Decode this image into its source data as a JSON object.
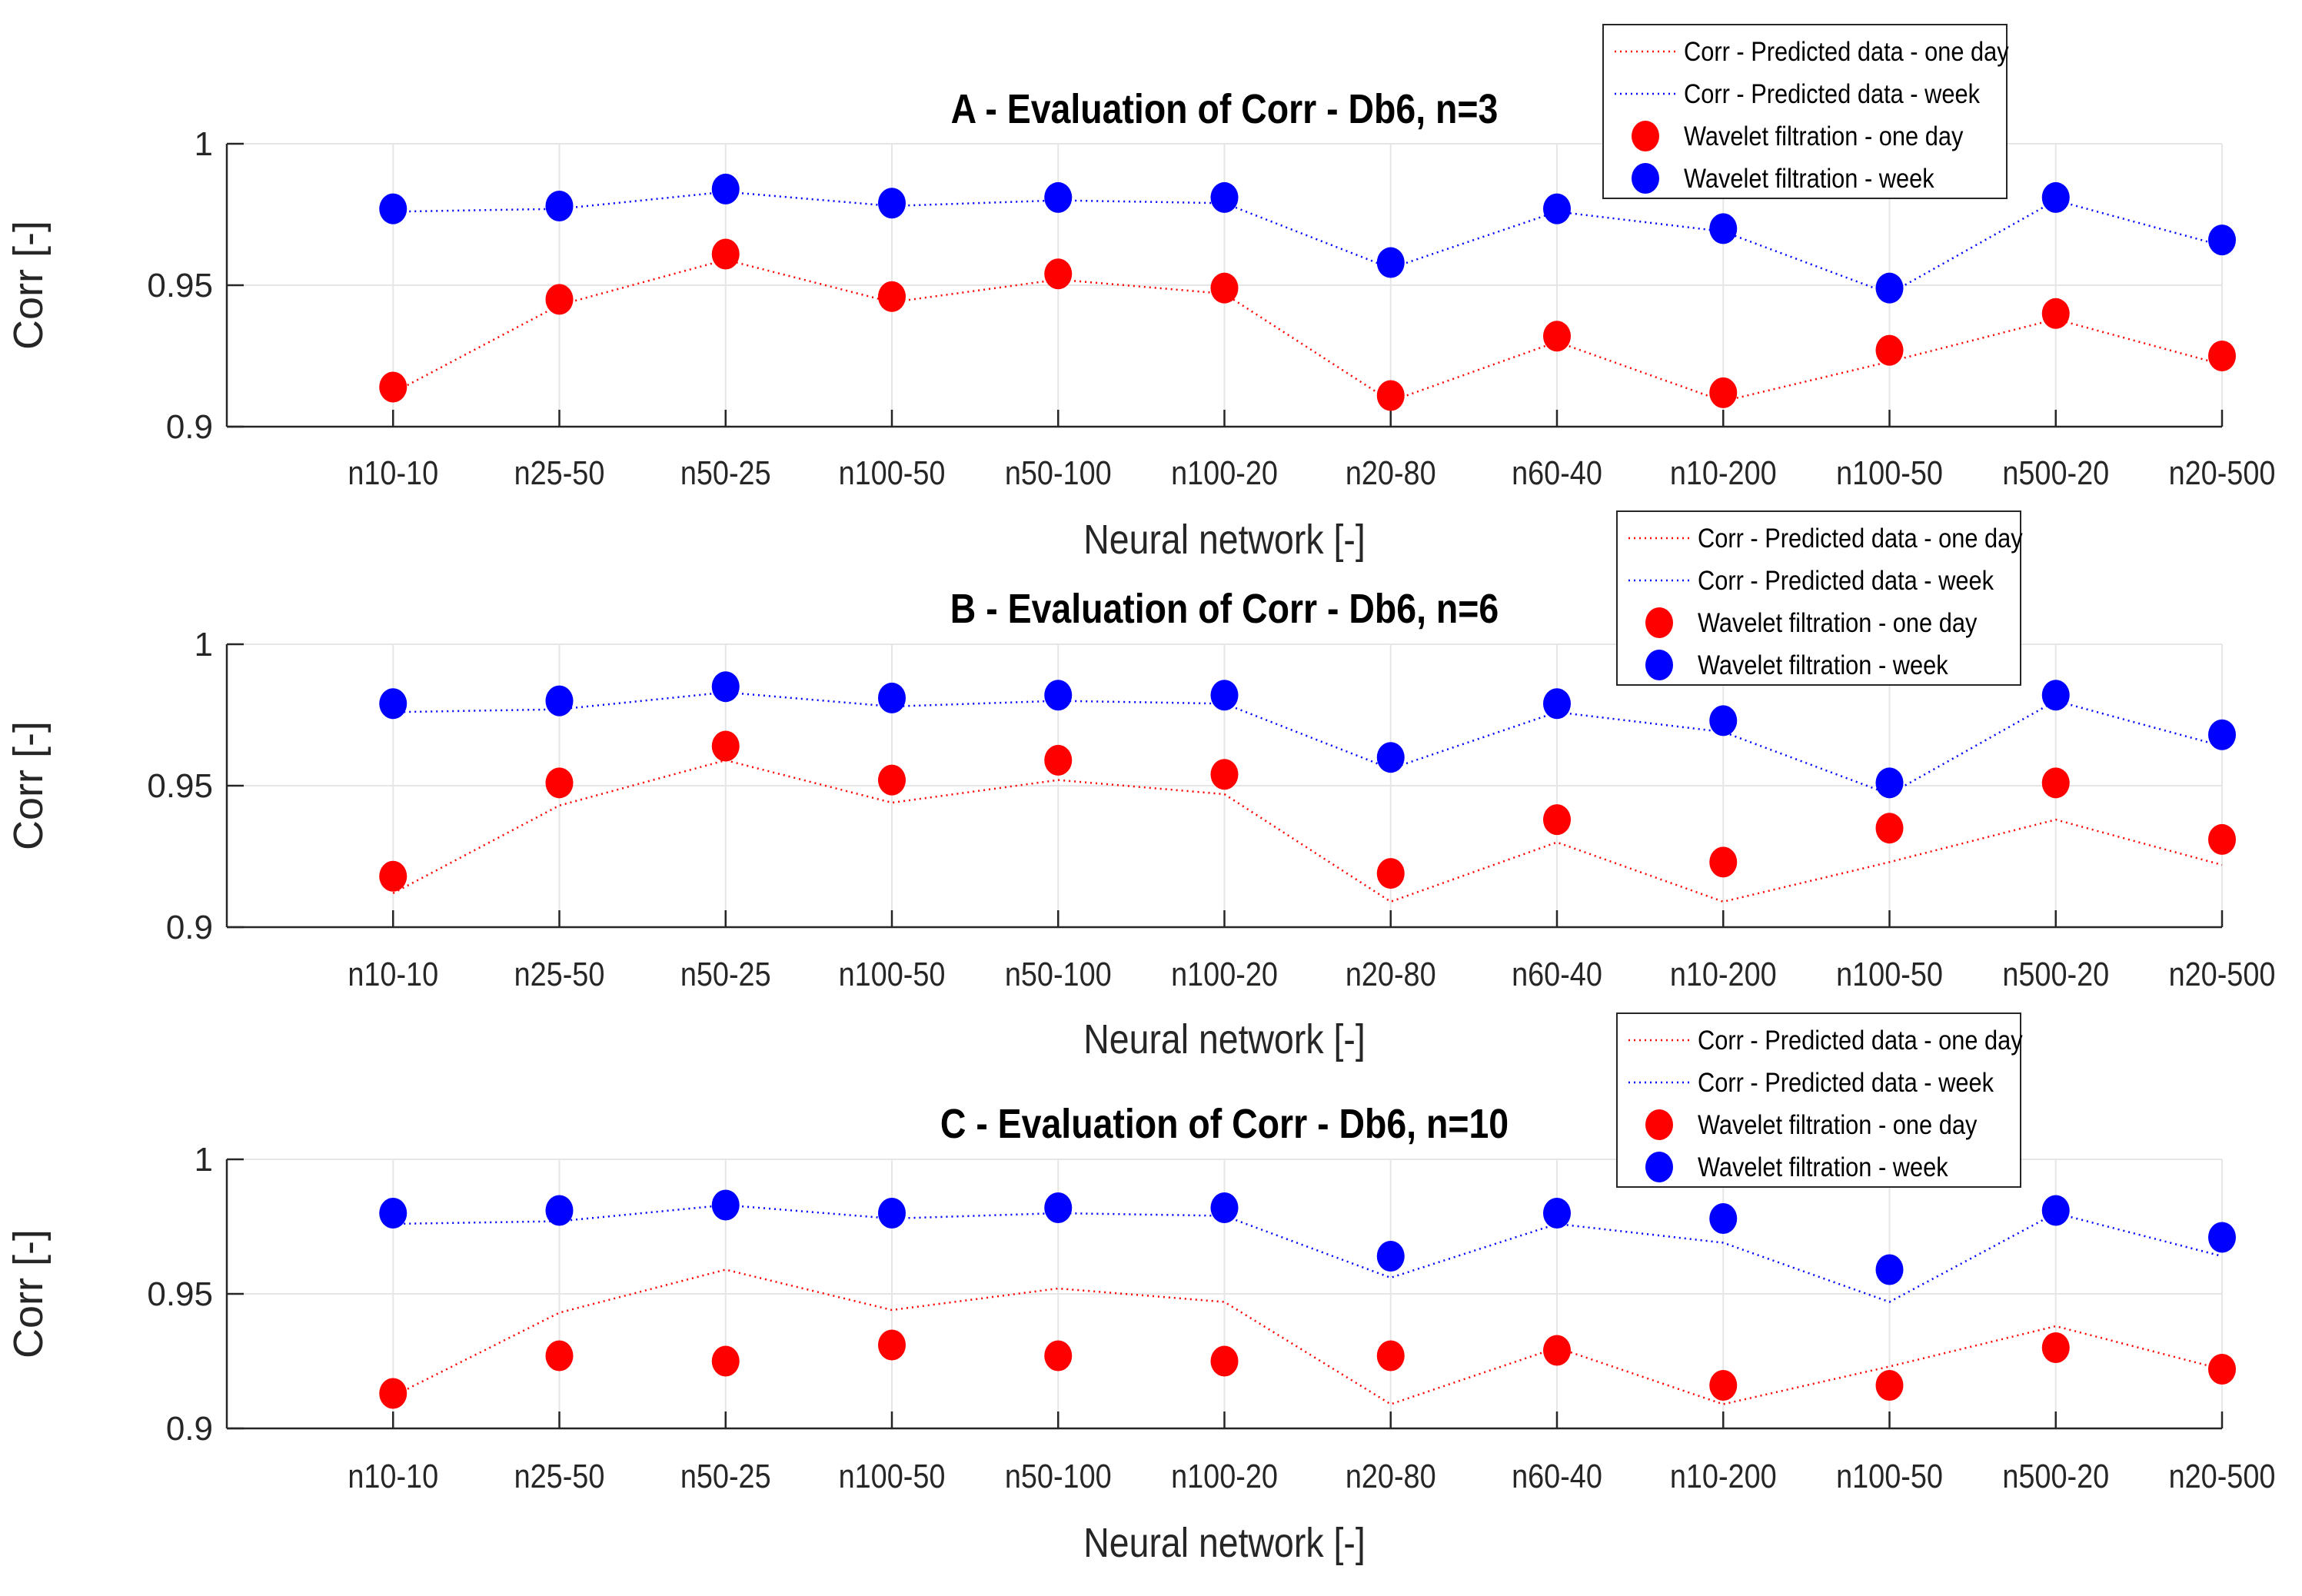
{
  "chart_data": [
    {
      "type": "line",
      "title": "A - Evaluation of Corr - Db6, n=3",
      "xlabel": "Neural network [-]",
      "ylabel": "Corr [-]",
      "ylim": [
        0.9,
        1.0
      ],
      "yticks": [
        "0.9",
        "0.95",
        "1"
      ],
      "grid": true,
      "legend": {
        "position": "top-right",
        "entries": [
          "Corr - Predicted data - one day",
          "Corr - Predicted data - week",
          "Wavelet filtration - one day",
          "Wavelet filtration - week"
        ]
      },
      "categories": [
        "n10-10",
        "n25-50",
        "n50-25",
        "n100-50",
        "n50-100",
        "n100-20",
        "n20-80",
        "n60-40",
        "n10-200",
        "n100-50",
        "n500-20",
        "n20-500"
      ],
      "series": [
        {
          "name": "Corr - Predicted data - one day",
          "style": "dotted-line",
          "color": "#ff0000",
          "values": [
            0.912,
            0.943,
            0.959,
            0.944,
            0.952,
            0.947,
            0.909,
            0.93,
            0.909,
            0.923,
            0.938,
            0.922
          ]
        },
        {
          "name": "Corr - Predicted data - week",
          "style": "dotted-line",
          "color": "#0000ff",
          "values": [
            0.976,
            0.977,
            0.983,
            0.978,
            0.98,
            0.979,
            0.956,
            0.976,
            0.969,
            0.947,
            0.98,
            0.964
          ]
        },
        {
          "name": "Wavelet filtration - one day",
          "style": "marker",
          "color": "#ff0000",
          "values": [
            0.914,
            0.945,
            0.961,
            0.946,
            0.954,
            0.949,
            0.911,
            0.932,
            0.912,
            0.927,
            0.94,
            0.925
          ]
        },
        {
          "name": "Wavelet filtration - week",
          "style": "marker",
          "color": "#0000ff",
          "values": [
            0.977,
            0.978,
            0.984,
            0.979,
            0.981,
            0.981,
            0.958,
            0.977,
            0.97,
            0.949,
            0.981,
            0.966
          ]
        }
      ]
    },
    {
      "type": "line",
      "title": "B - Evaluation of Corr - Db6, n=6",
      "xlabel": "Neural network [-]",
      "ylabel": "Corr [-]",
      "ylim": [
        0.9,
        1.0
      ],
      "yticks": [
        "0.9",
        "0.95",
        "1"
      ],
      "grid": true,
      "legend": {
        "position": "top-right",
        "entries": [
          "Corr - Predicted data - one day",
          "Corr - Predicted data - week",
          "Wavelet filtration - one day",
          "Wavelet filtration - week"
        ]
      },
      "categories": [
        "n10-10",
        "n25-50",
        "n50-25",
        "n100-50",
        "n50-100",
        "n100-20",
        "n20-80",
        "n60-40",
        "n10-200",
        "n100-50",
        "n500-20",
        "n20-500"
      ],
      "series": [
        {
          "name": "Corr - Predicted data - one day",
          "style": "dotted-line",
          "color": "#ff0000",
          "values": [
            0.912,
            0.943,
            0.959,
            0.944,
            0.952,
            0.947,
            0.909,
            0.93,
            0.909,
            0.923,
            0.938,
            0.922
          ]
        },
        {
          "name": "Corr - Predicted data - week",
          "style": "dotted-line",
          "color": "#0000ff",
          "values": [
            0.976,
            0.977,
            0.983,
            0.978,
            0.98,
            0.979,
            0.956,
            0.976,
            0.969,
            0.947,
            0.98,
            0.964
          ]
        },
        {
          "name": "Wavelet filtration - one day",
          "style": "marker",
          "color": "#ff0000",
          "values": [
            0.918,
            0.951,
            0.964,
            0.952,
            0.959,
            0.954,
            0.919,
            0.938,
            0.923,
            0.935,
            0.951,
            0.931
          ]
        },
        {
          "name": "Wavelet filtration - week",
          "style": "marker",
          "color": "#0000ff",
          "values": [
            0.979,
            0.98,
            0.985,
            0.981,
            0.982,
            0.982,
            0.96,
            0.979,
            0.973,
            0.951,
            0.982,
            0.968
          ]
        }
      ]
    },
    {
      "type": "line",
      "title": "C - Evaluation of Corr - Db6, n=10",
      "xlabel": "Neural network [-]",
      "ylabel": "Corr [-]",
      "ylim": [
        0.9,
        1.0
      ],
      "yticks": [
        "0.9",
        "0.95",
        "1"
      ],
      "grid": true,
      "legend": {
        "position": "top-right",
        "entries": [
          "Corr - Predicted data - one day",
          "Corr - Predicted data - week",
          "Wavelet filtration - one day",
          "Wavelet filtration - week"
        ]
      },
      "categories": [
        "n10-10",
        "n25-50",
        "n50-25",
        "n100-50",
        "n50-100",
        "n100-20",
        "n20-80",
        "n60-40",
        "n10-200",
        "n100-50",
        "n500-20",
        "n20-500"
      ],
      "series": [
        {
          "name": "Corr - Predicted data - one day",
          "style": "dotted-line",
          "color": "#ff0000",
          "values": [
            0.912,
            0.943,
            0.959,
            0.944,
            0.952,
            0.947,
            0.909,
            0.93,
            0.909,
            0.923,
            0.938,
            0.922
          ]
        },
        {
          "name": "Corr - Predicted data - week",
          "style": "dotted-line",
          "color": "#0000ff",
          "values": [
            0.976,
            0.977,
            0.983,
            0.978,
            0.98,
            0.979,
            0.956,
            0.976,
            0.969,
            0.947,
            0.98,
            0.964
          ]
        },
        {
          "name": "Wavelet filtration - one day",
          "style": "marker",
          "color": "#ff0000",
          "values": [
            0.913,
            0.927,
            0.925,
            0.931,
            0.927,
            0.925,
            0.927,
            0.929,
            0.916,
            0.916,
            0.93,
            0.922
          ]
        },
        {
          "name": "Wavelet filtration - week",
          "style": "marker",
          "color": "#0000ff",
          "values": [
            0.98,
            0.981,
            0.983,
            0.98,
            0.982,
            0.982,
            0.964,
            0.98,
            0.978,
            0.959,
            0.981,
            0.971
          ]
        }
      ]
    }
  ]
}
